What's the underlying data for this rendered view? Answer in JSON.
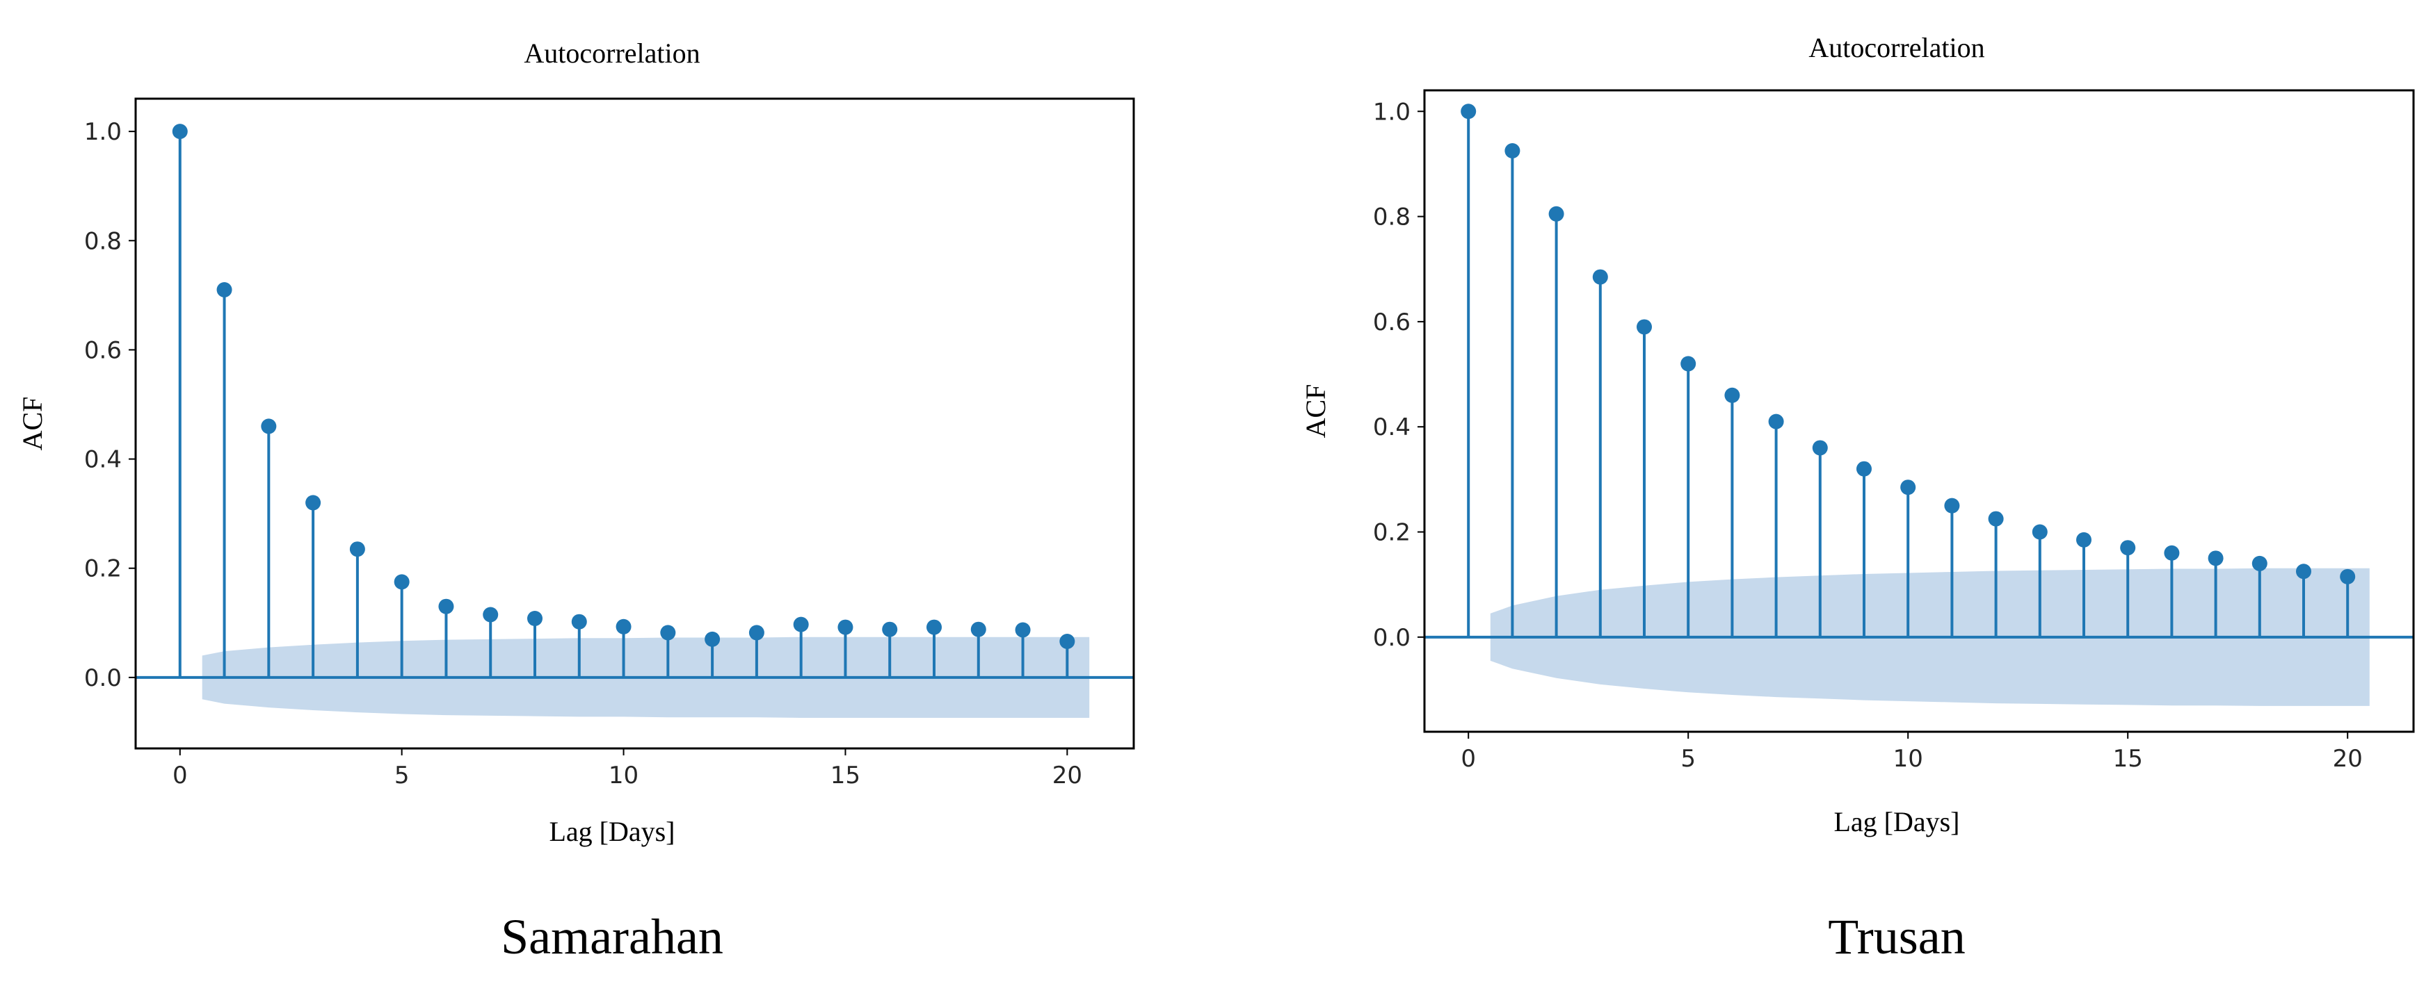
{
  "colors": {
    "stem": "#1f77b4",
    "marker": "#1f77b4",
    "confidence_band": "#c6d9ec",
    "axes": "#000000",
    "background": "#ffffff"
  },
  "chart_data": [
    {
      "type": "stem",
      "title": "Autocorrelation",
      "xlabel": "Lag [Days]",
      "ylabel": "ACF",
      "caption": "Samarahan",
      "xlim": [
        -1,
        21.5
      ],
      "ylim": [
        -0.13,
        1.06
      ],
      "xticks": [
        0,
        5,
        10,
        15,
        20
      ],
      "xtick_labels": [
        "0",
        "5",
        "10",
        "15",
        "20"
      ],
      "yticks": [
        0.0,
        0.2,
        0.4,
        0.6,
        0.8,
        1.0
      ],
      "ytick_labels": [
        "0.0",
        "0.2",
        "0.4",
        "0.6",
        "0.8",
        "1.0"
      ],
      "grid": false,
      "x": [
        0,
        1,
        2,
        3,
        4,
        5,
        6,
        7,
        8,
        9,
        10,
        11,
        12,
        13,
        14,
        15,
        16,
        17,
        18,
        19,
        20
      ],
      "values": [
        1.0,
        0.71,
        0.46,
        0.32,
        0.235,
        0.175,
        0.13,
        0.115,
        0.108,
        0.102,
        0.093,
        0.082,
        0.07,
        0.082,
        0.097,
        0.092,
        0.088,
        0.092,
        0.088,
        0.087,
        0.066
      ],
      "confidence_band": {
        "x": [
          0.5,
          1,
          2,
          3,
          4,
          5,
          6,
          7,
          8,
          9,
          10,
          11,
          12,
          13,
          14,
          15,
          16,
          17,
          18,
          19,
          20,
          20.5
        ],
        "upper": [
          0.04,
          0.048,
          0.055,
          0.06,
          0.064,
          0.067,
          0.069,
          0.07,
          0.071,
          0.072,
          0.072,
          0.073,
          0.073,
          0.073,
          0.074,
          0.074,
          0.074,
          0.074,
          0.074,
          0.074,
          0.074,
          0.074
        ],
        "lower": [
          -0.04,
          -0.048,
          -0.055,
          -0.06,
          -0.064,
          -0.067,
          -0.069,
          -0.07,
          -0.071,
          -0.072,
          -0.072,
          -0.073,
          -0.073,
          -0.073,
          -0.074,
          -0.074,
          -0.074,
          -0.074,
          -0.074,
          -0.074,
          -0.074,
          -0.074
        ]
      }
    },
    {
      "type": "stem",
      "title": "Autocorrelation",
      "xlabel": "Lag [Days]",
      "ylabel": "ACF",
      "caption": "Trusan",
      "xlim": [
        -1,
        21.5
      ],
      "ylim": [
        -0.18,
        1.04
      ],
      "xticks": [
        0,
        5,
        10,
        15,
        20
      ],
      "xtick_labels": [
        "0",
        "5",
        "10",
        "15",
        "20"
      ],
      "yticks": [
        0.0,
        0.2,
        0.4,
        0.6,
        0.8,
        1.0
      ],
      "ytick_labels": [
        "0.0",
        "0.2",
        "0.4",
        "0.6",
        "0.8",
        "1.0"
      ],
      "grid": false,
      "x": [
        0,
        1,
        2,
        3,
        4,
        5,
        6,
        7,
        8,
        9,
        10,
        11,
        12,
        13,
        14,
        15,
        16,
        17,
        18,
        19,
        20
      ],
      "values": [
        1.0,
        0.925,
        0.805,
        0.685,
        0.59,
        0.52,
        0.46,
        0.41,
        0.36,
        0.32,
        0.285,
        0.25,
        0.225,
        0.2,
        0.185,
        0.17,
        0.16,
        0.15,
        0.14,
        0.125,
        0.115
      ],
      "confidence_band": {
        "x": [
          0.5,
          1,
          2,
          3,
          4,
          5,
          6,
          7,
          8,
          9,
          10,
          11,
          12,
          13,
          14,
          15,
          16,
          17,
          18,
          19,
          20,
          20.5
        ],
        "upper": [
          0.045,
          0.06,
          0.078,
          0.09,
          0.098,
          0.105,
          0.11,
          0.114,
          0.117,
          0.12,
          0.122,
          0.124,
          0.126,
          0.127,
          0.128,
          0.129,
          0.13,
          0.13,
          0.131,
          0.131,
          0.131,
          0.131
        ],
        "lower": [
          -0.045,
          -0.06,
          -0.078,
          -0.09,
          -0.098,
          -0.105,
          -0.11,
          -0.114,
          -0.117,
          -0.12,
          -0.122,
          -0.124,
          -0.126,
          -0.127,
          -0.128,
          -0.129,
          -0.13,
          -0.13,
          -0.131,
          -0.131,
          -0.131,
          -0.131
        ]
      }
    }
  ]
}
